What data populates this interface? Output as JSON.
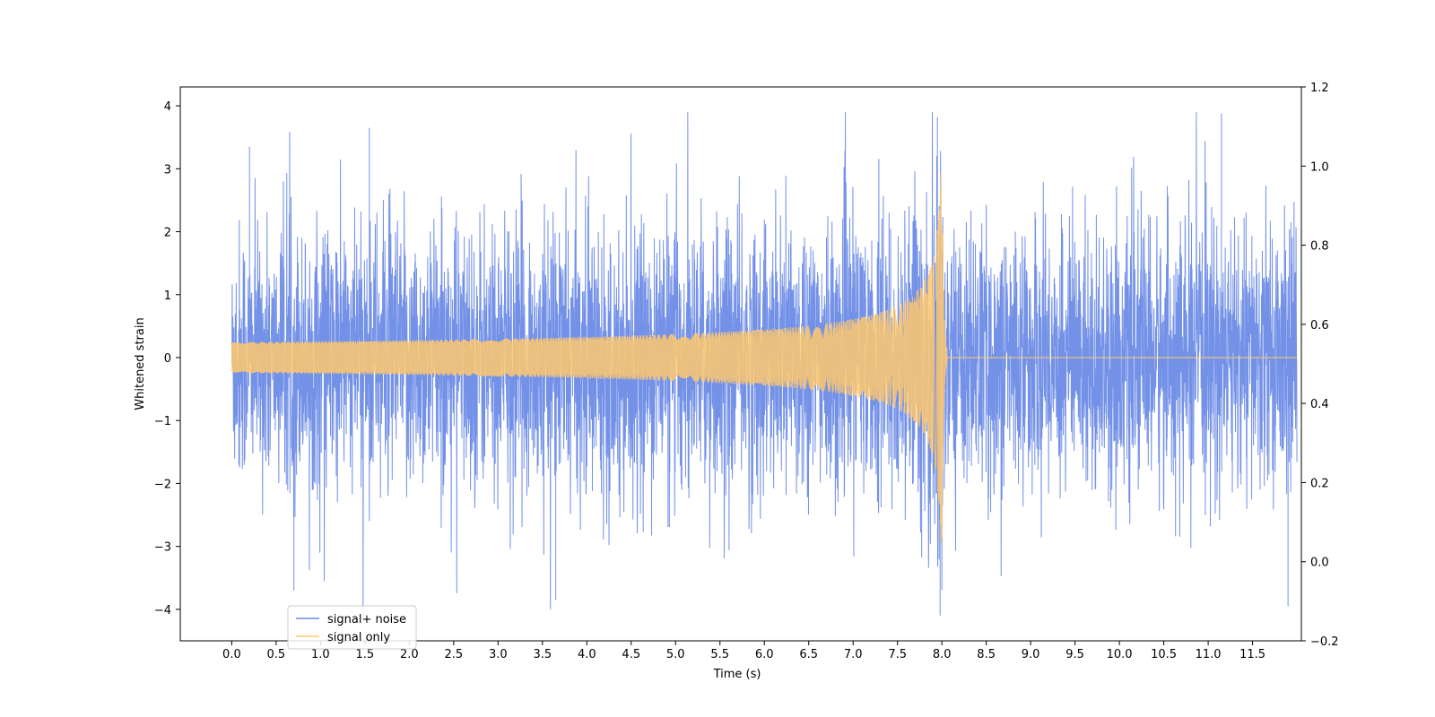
{
  "chart_data": {
    "type": "line",
    "title": "",
    "xlabel": "Time (s)",
    "ylabel": "Whitened strain",
    "xlim": [
      -0.58,
      12.05
    ],
    "ylim": [
      -4.5,
      4.3
    ],
    "y2lim": [
      -0.2,
      1.2
    ],
    "x_ticks": [
      "0.0",
      "0.5",
      "1.0",
      "1.5",
      "2.0",
      "2.5",
      "3.0",
      "3.5",
      "4.0",
      "4.5",
      "5.0",
      "5.5",
      "6.0",
      "6.5",
      "7.0",
      "7.5",
      "8.0",
      "8.5",
      "9.0",
      "9.5",
      "10.0",
      "10.5",
      "11.0",
      "11.5"
    ],
    "y_ticks": [
      "4",
      "3",
      "2",
      "1",
      "0",
      "−1",
      "−2",
      "−3",
      "−4"
    ],
    "y2_ticks": [
      "1.2",
      "1.0",
      "0.8",
      "0.6",
      "0.4",
      "0.2",
      "0.0",
      "−0.2"
    ],
    "grid": false,
    "legend_position": "lower-left",
    "series": [
      {
        "name": "signal+ noise",
        "color": "#6b8be6",
        "kind": "noisy-strain",
        "x_range": [
          0.0,
          12.0
        ],
        "amplitude_range": [
          -4.1,
          3.9
        ],
        "notable_peaks": [
          {
            "x": 0.2,
            "y": 3.35
          },
          {
            "x": 0.7,
            "y": -3.7
          },
          {
            "x": 1.55,
            "y": 3.65
          },
          {
            "x": 3.65,
            "y": -3.85
          },
          {
            "x": 7.95,
            "y": 3.82
          },
          {
            "x": 7.98,
            "y": -4.1
          },
          {
            "x": 11.15,
            "y": 3.88
          },
          {
            "x": 11.9,
            "y": -3.95
          }
        ]
      },
      {
        "name": "signal only",
        "color": "#ffc86e",
        "kind": "chirp",
        "x_range": [
          0.0,
          12.0
        ],
        "merger_time": 8.0,
        "peak_amplitude": 3.6
      }
    ]
  }
}
